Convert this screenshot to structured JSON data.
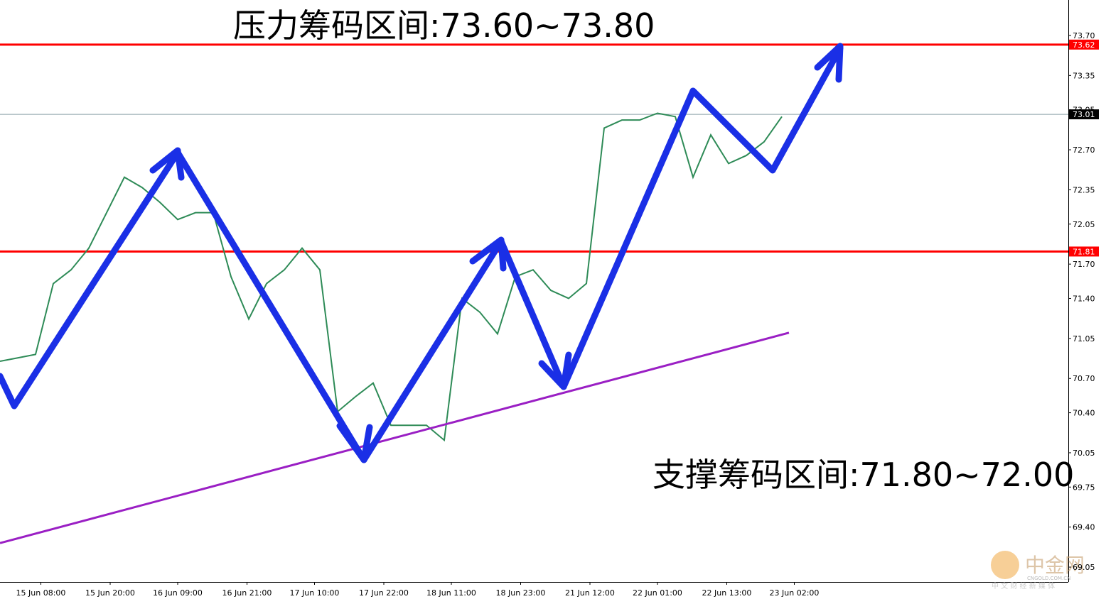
{
  "chart_data": {
    "type": "line",
    "annotations": [
      "压力筹码区间:73.60~73.80",
      "支撑筹码区间:71.80~72.00",
      "中金网",
      "CNGOLD.COM.CN",
      "中 文 财 经 新 媒 体"
    ],
    "xlim": [
      0,
      60.12
    ],
    "ylim": [
      68.92,
      74.01
    ],
    "yticks": [
      {
        "value": 73.7,
        "label": "73.70"
      },
      73.35,
      73.05,
      {
        "value": 72.7,
        "label": "72.70"
      },
      72.35,
      72.05,
      {
        "value": 71.7,
        "label": "71.70"
      },
      {
        "value": 71.4,
        "label": "71.40"
      },
      71.05,
      {
        "value": 70.7,
        "label": "70.70"
      },
      {
        "value": 70.4,
        "label": "70.40"
      },
      70.05,
      69.75,
      {
        "value": 69.4,
        "label": "69.40"
      },
      69.05
    ],
    "xticks": [
      {
        "value": 2.3,
        "label": "15 Jun 08:00"
      },
      {
        "value": 6.2,
        "label": "15 Jun 20:00"
      },
      {
        "value": 10.0,
        "label": "16 Jun 09:00"
      },
      {
        "value": 13.9,
        "label": "16 Jun 21:00"
      },
      {
        "value": 17.7,
        "label": "17 Jun 10:00"
      },
      {
        "value": 21.6,
        "label": "17 Jun 22:00"
      },
      {
        "value": 25.4,
        "label": "18 Jun 11:00"
      },
      {
        "value": 29.3,
        "label": "18 Jun 23:00"
      },
      {
        "value": 33.2,
        "label": "21 Jun 12:00"
      },
      {
        "value": 37.0,
        "label": "22 Jun 01:00"
      },
      {
        "value": 40.9,
        "label": "22 Jun 13:00"
      },
      {
        "value": 44.7,
        "label": "23 Jun 02:00"
      }
    ],
    "series": [
      {
        "color": "#2e8b57",
        "x": [
          0,
          1,
          2,
          3,
          4,
          5,
          6,
          7,
          8,
          9,
          10,
          11,
          12,
          13,
          14,
          15,
          16,
          17,
          18,
          19,
          20,
          21,
          22,
          23,
          24,
          25,
          26,
          27,
          28,
          29,
          30,
          31,
          32,
          33,
          34,
          35,
          36,
          37,
          38,
          39,
          40,
          41,
          42,
          43,
          44
        ],
        "values": [
          70.85,
          70.88,
          70.91,
          71.53,
          71.65,
          71.84,
          72.15,
          72.46,
          72.37,
          72.24,
          72.09,
          72.15,
          72.15,
          71.59,
          71.22,
          71.53,
          71.65,
          71.84,
          71.65,
          70.41,
          70.54,
          70.66,
          70.29,
          70.29,
          70.29,
          70.16,
          71.4,
          71.28,
          71.09,
          71.59,
          71.65,
          71.47,
          71.4,
          71.53,
          72.89,
          72.96,
          72.96,
          73.02,
          72.99,
          72.46,
          72.83,
          72.58,
          72.65,
          72.77,
          72.99
        ]
      },
      {
        "color": "#9a1fc4",
        "x": [
          0,
          44.4
        ],
        "values": [
          69.26,
          71.1
        ]
      }
    ],
    "levels": [
      {
        "value": 73.62,
        "color": "#ff0000"
      },
      {
        "value": 71.81,
        "color": "#ff0000"
      },
      {
        "value": 73.01,
        "color": "#000000"
      }
    ]
  }
}
